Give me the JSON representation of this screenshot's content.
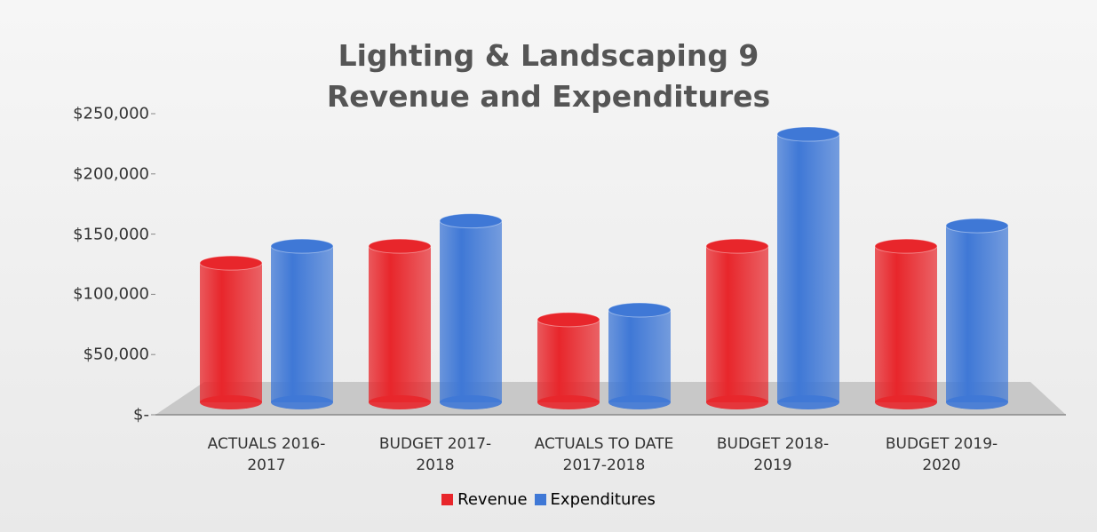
{
  "chart_data": {
    "type": "bar",
    "title": "Lighting & Landscaping 9\nRevenue and Expenditures",
    "categories": [
      "ACTUALS 2016-\n2017",
      "BUDGET 2017-\n2018",
      "ACTUALS TO DATE\n2017-2018",
      "BUDGET 2018-\n2019",
      "BUDGET 2019-\n2020"
    ],
    "series": [
      {
        "name": "Revenue",
        "color": "#e8262b",
        "values": [
          126000,
          140000,
          79000,
          140000,
          140000
        ]
      },
      {
        "name": "Expenditures",
        "color": "#3f78d6",
        "values": [
          140000,
          161000,
          87000,
          233000,
          157000
        ]
      }
    ],
    "ylim": [
      0,
      250000
    ],
    "yticks": [
      {
        "value": 0,
        "label": "$-"
      },
      {
        "value": 50000,
        "label": "$50,000"
      },
      {
        "value": 100000,
        "label": "$100,000"
      },
      {
        "value": 150000,
        "label": "$150,000"
      },
      {
        "value": 200000,
        "label": "$200,000"
      },
      {
        "value": 250000,
        "label": "$250,000"
      }
    ],
    "legend": "bottom"
  }
}
